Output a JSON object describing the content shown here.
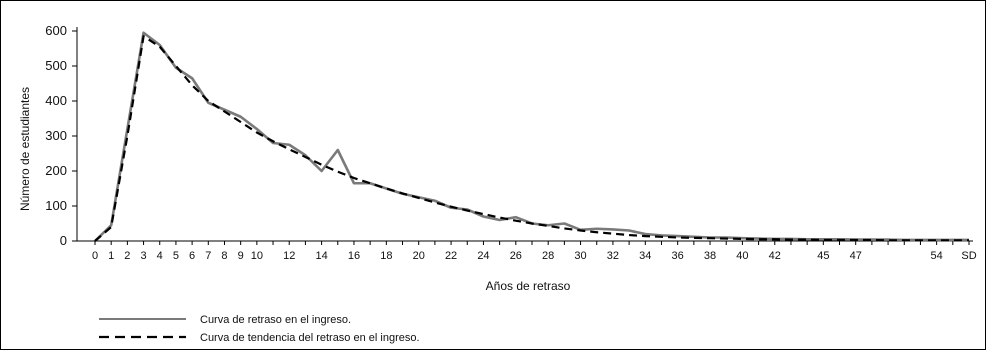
{
  "chart_data": {
    "type": "line",
    "title": "",
    "xlabel": "Años de retraso",
    "ylabel": "Número de estudiantes",
    "ylim": [
      0,
      600
    ],
    "yticks": [
      0,
      100,
      200,
      300,
      400,
      500,
      600
    ],
    "grid": false,
    "legend_position": "bottom-left",
    "x_tick_labels": [
      "0",
      "1",
      "2",
      "3",
      "4",
      "5",
      "6",
      "7",
      "8",
      "9",
      "10",
      "12",
      "14",
      "16",
      "18",
      "20",
      "22",
      "24",
      "26",
      "28",
      "30",
      "32",
      "34",
      "36",
      "38",
      "40",
      "42",
      "45",
      "47",
      "54",
      "SD"
    ],
    "series": [
      {
        "name": "Curva de retraso en el ingreso.",
        "style": "solid",
        "color": "#7a7a7a",
        "values": [
          0,
          45,
          320,
          595,
          560,
          495,
          465,
          395,
          375,
          355,
          320,
          280,
          275,
          245,
          200,
          260,
          165,
          165,
          150,
          135,
          125,
          115,
          95,
          90,
          70,
          60,
          68,
          50,
          45,
          50,
          32,
          35,
          33,
          30,
          20,
          16,
          14,
          12,
          10,
          10,
          8,
          7,
          6,
          6,
          5,
          5,
          5,
          4,
          4,
          4,
          3,
          3,
          3,
          3,
          3
        ]
      },
      {
        "name": "Curva de tendencia del retraso en el ingreso.",
        "style": "dashed",
        "color": "#000000",
        "values": [
          0,
          40,
          300,
          585,
          555,
          500,
          445,
          400,
          370,
          340,
          310,
          285,
          262,
          240,
          218,
          198,
          180,
          165,
          150,
          136,
          123,
          110,
          98,
          87,
          77,
          67,
          58,
          50,
          43,
          36,
          30,
          25,
          21,
          17,
          14,
          12,
          10,
          9,
          8,
          7,
          6,
          5,
          5,
          4,
          4,
          3,
          3,
          3,
          3,
          2,
          2,
          2,
          2,
          2,
          2
        ]
      }
    ]
  }
}
